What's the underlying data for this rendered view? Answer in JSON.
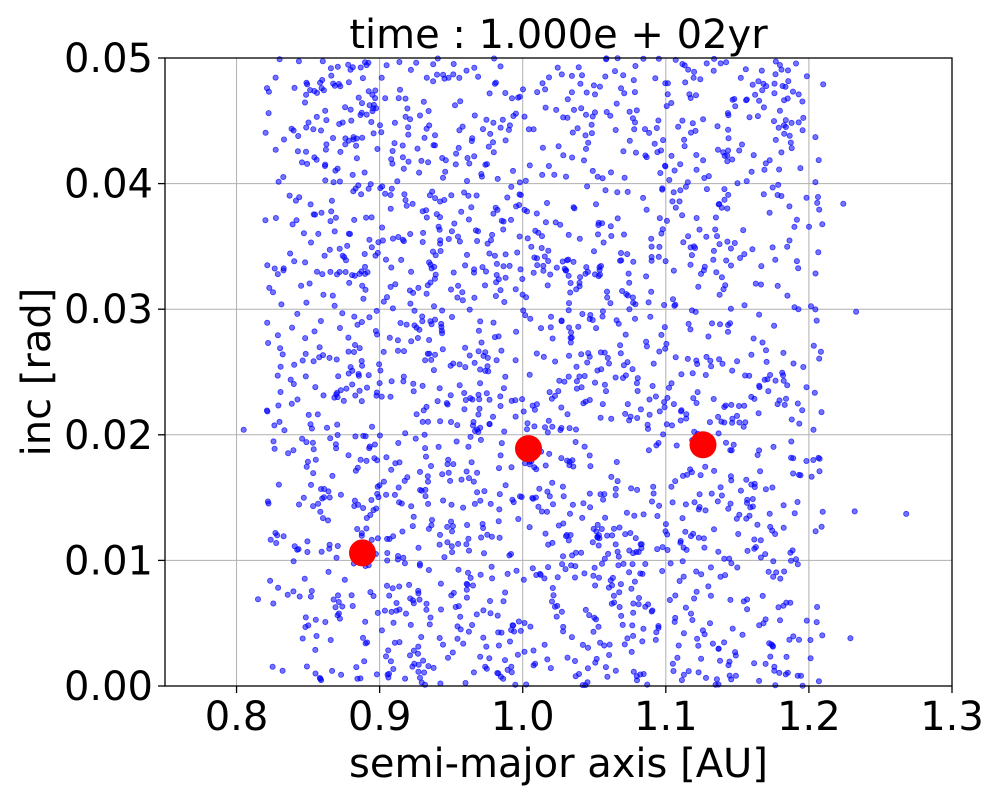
{
  "chart_data": {
    "type": "scatter",
    "title": "time : 1.000e + 02yr",
    "xlabel": "semi-major axis [AU]",
    "ylabel": "inc [rad]",
    "xlim": [
      0.75,
      1.3
    ],
    "ylim": [
      0.0,
      0.05
    ],
    "xticks": [
      0.8,
      0.9,
      1.0,
      1.1,
      1.2,
      1.3
    ],
    "yticks": [
      0.0,
      0.01,
      0.02,
      0.03,
      0.04,
      0.05
    ],
    "xtick_labels": [
      "0.8",
      "0.9",
      "1.0",
      "1.1",
      "1.2",
      "1.3"
    ],
    "ytick_labels": [
      "0.00",
      "0.01",
      "0.02",
      "0.03",
      "0.04",
      "0.05"
    ],
    "grid": true,
    "series": [
      {
        "marker_color": "#0000ff",
        "description": "small bodies (approx. 2000 points, roughly uniform for a in [0.82, 1.21] AU and inc in [0, 0.05] rad; a few outliers)",
        "distribution": {
          "count": 2000,
          "x_range": [
            0.82,
            1.21
          ],
          "y_range": [
            0.0,
            0.05
          ],
          "outliers": [
            [
              0.805,
              0.0204
            ],
            [
              0.815,
              0.0069
            ],
            [
              1.233,
              0.0298
            ],
            [
              1.232,
              0.0139
            ],
            [
              1.268,
              0.0137
            ],
            [
              1.224,
              0.0384
            ],
            [
              1.21,
              0.0479
            ],
            [
              1.229,
              0.0038
            ]
          ]
        }
      },
      {
        "marker_color": "#ff0000",
        "points": [
          [
            0.888,
            0.0106
          ],
          [
            1.004,
            0.0189
          ],
          [
            1.126,
            0.0192
          ]
        ]
      }
    ]
  }
}
